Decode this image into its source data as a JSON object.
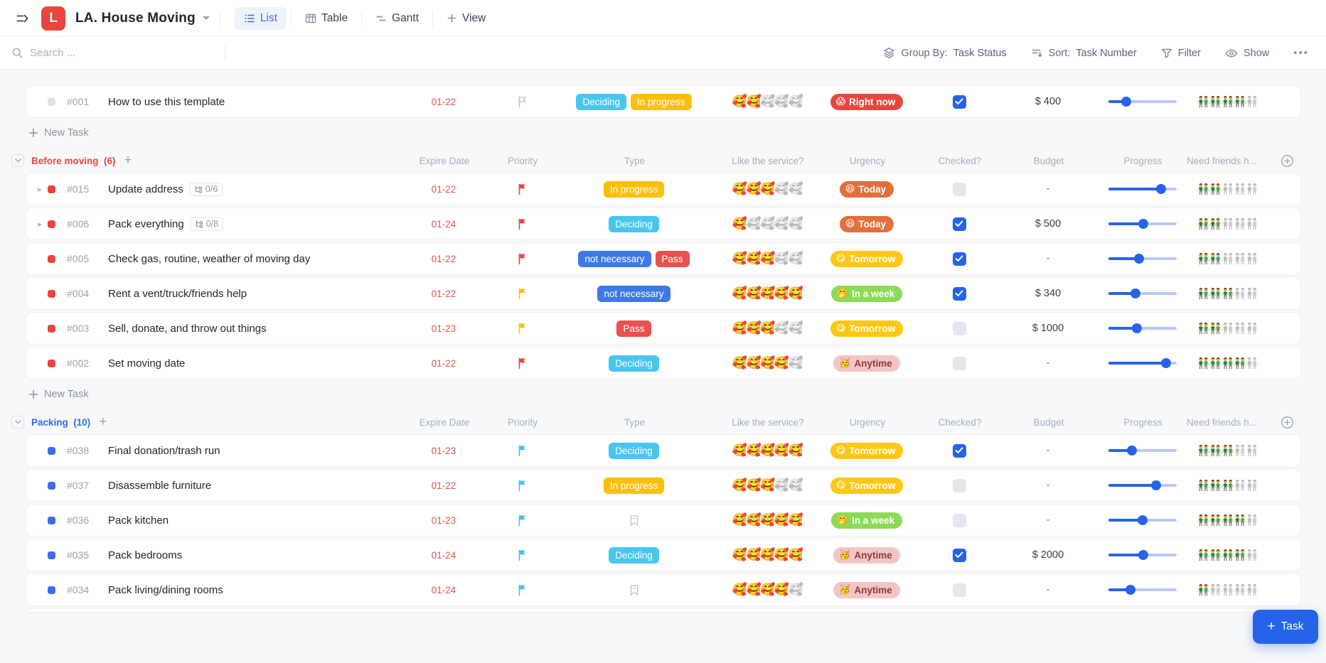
{
  "header": {
    "workspace_initial": "L",
    "title": "LA. House Moving",
    "tabs": [
      {
        "label": "List",
        "active": true
      },
      {
        "label": "Table",
        "active": false
      },
      {
        "label": "Gantt",
        "active": false
      }
    ],
    "view_label": "View"
  },
  "toolbar": {
    "search_placeholder": "Search ...",
    "group_by_label": "Group By:",
    "group_by_value": "Task Status",
    "sort_label": "Sort:",
    "sort_value": "Task Number",
    "filter_label": "Filter",
    "show_label": "Show",
    "more_label": "•••"
  },
  "columns": [
    "Expire Date",
    "Priority",
    "Type",
    "Like the service?",
    "Urgency",
    "Checked?",
    "Budget",
    "Progress",
    "Need friends h..."
  ],
  "labels": {
    "new_task": "New Task",
    "fab": "Task"
  },
  "rating_emoji": "🥰",
  "friends_emoji": "👬",
  "sections": [
    {
      "kind": "plain",
      "new_task": true,
      "tasks": [
        {
          "num": "#001",
          "title": "How to use this template",
          "subtasks": null,
          "status": "#dde1ea",
          "flag": "#b9c0cf",
          "flag_style": "outline",
          "date": "01-22",
          "types": [
            {
              "label": "Deciding",
              "bg": "#49c6ef"
            },
            {
              "label": "In progress",
              "bg": "#fcc00a"
            }
          ],
          "rating": 2,
          "urgency": {
            "label": "Right now",
            "emoji": "😱",
            "bg": "#e8463d",
            "fg": "#ffffff"
          },
          "checked": true,
          "budget": "$ 400",
          "progress": 27,
          "friends": 4
        }
      ]
    },
    {
      "kind": "group",
      "name": "Before moving",
      "count": "(6)",
      "color": "#e8463d",
      "new_task": true,
      "tasks": [
        {
          "num": "#015",
          "title": "Update address",
          "subtasks": "0/6",
          "status": "#e8463d",
          "flag": "#e8463d",
          "flag_style": "filled",
          "date": "01-22",
          "types": [
            {
              "label": "In progress",
              "bg": "#fcc00a"
            }
          ],
          "rating": 3,
          "urgency": {
            "label": "Today",
            "emoji": "😆",
            "bg": "#e2703a",
            "fg": "#ffffff"
          },
          "checked": false,
          "budget": "-",
          "progress": 78,
          "friends": 2
        },
        {
          "num": "#006",
          "title": "Pack everything",
          "subtasks": "0/8",
          "status": "#e8463d",
          "flag": "#e8463d",
          "flag_style": "filled",
          "date": "01-24",
          "types": [
            {
              "label": "Deciding",
              "bg": "#49c6ef"
            }
          ],
          "rating": 1,
          "urgency": {
            "label": "Today",
            "emoji": "😆",
            "bg": "#e2703a",
            "fg": "#ffffff"
          },
          "checked": true,
          "budget": "$ 500",
          "progress": 52,
          "friends": 2
        },
        {
          "num": "#005",
          "title": "Check gas, routine, weather of moving day",
          "subtasks": null,
          "status": "#e8463d",
          "flag": "#e8463d",
          "flag_style": "filled",
          "date": "01-22",
          "types": [
            {
              "label": "not necessary",
              "bg": "#3e79e8"
            },
            {
              "label": "Pass",
              "bg": "#e9504e"
            }
          ],
          "rating": 3,
          "urgency": {
            "label": "Tomorrow",
            "emoji": "😋",
            "bg": "#fdc713",
            "fg": "#ffffff"
          },
          "checked": true,
          "budget": "-",
          "progress": 45,
          "friends": 2
        },
        {
          "num": "#004",
          "title": "Rent a vent/truck/friends help",
          "subtasks": null,
          "status": "#e8463d",
          "flag": "#fcc00a",
          "flag_style": "filled",
          "date": "01-22",
          "types": [
            {
              "label": "not necessary",
              "bg": "#3e79e8"
            }
          ],
          "rating": 5,
          "urgency": {
            "label": "In a week",
            "emoji": "🤭",
            "bg": "#8bdb57",
            "fg": "#ffffff"
          },
          "checked": true,
          "budget": "$ 340",
          "progress": 40,
          "friends": 3
        },
        {
          "num": "#003",
          "title": "Sell, donate, and throw out things",
          "subtasks": null,
          "status": "#e8463d",
          "flag": "#fcc00a",
          "flag_style": "filled",
          "date": "01-23",
          "types": [
            {
              "label": "Pass",
              "bg": "#e9504e"
            }
          ],
          "rating": 3,
          "urgency": {
            "label": "Tomorrow",
            "emoji": "😋",
            "bg": "#fdc713",
            "fg": "#ffffff"
          },
          "checked": false,
          "budget": "$ 1000",
          "progress": 42,
          "friends": 2
        },
        {
          "num": "#002",
          "title": "Set moving date",
          "subtasks": null,
          "status": "#e8463d",
          "flag": "#e8463d",
          "flag_style": "filled",
          "date": "01-22",
          "types": [
            {
              "label": "Deciding",
              "bg": "#49c6ef"
            }
          ],
          "rating": 4,
          "urgency": {
            "label": "Anytime",
            "emoji": "🥳",
            "bg": "#f4c5c5",
            "fg": "#8d3a3a"
          },
          "checked": false,
          "budget": "-",
          "progress": 85,
          "friends": 4
        }
      ]
    },
    {
      "kind": "group",
      "name": "Packing",
      "count": "(10)",
      "color": "#2f6be4",
      "new_task": false,
      "partial_next_row": true,
      "tasks": [
        {
          "num": "#038",
          "title": "Final donation/trash run",
          "subtasks": null,
          "status": "#3e6be8",
          "flag": "#45c0f0",
          "flag_style": "filled",
          "date": "01-23",
          "types": [
            {
              "label": "Deciding",
              "bg": "#49c6ef"
            }
          ],
          "rating": 5,
          "urgency": {
            "label": "Tomorrow",
            "emoji": "😋",
            "bg": "#fdc713",
            "fg": "#ffffff"
          },
          "checked": true,
          "budget": "-",
          "progress": 35,
          "friends": 3
        },
        {
          "num": "#037",
          "title": "Disassemble furniture",
          "subtasks": null,
          "status": "#3e6be8",
          "flag": "#45c0f0",
          "flag_style": "filled",
          "date": "01-22",
          "types": [
            {
              "label": "In progress",
              "bg": "#fcc00a"
            }
          ],
          "rating": 3,
          "urgency": {
            "label": "Tomorrow",
            "emoji": "😋",
            "bg": "#fdc713",
            "fg": "#ffffff"
          },
          "checked": false,
          "budget": "-",
          "progress": 70,
          "friends": 3
        },
        {
          "num": "#036",
          "title": "Pack kitchen",
          "subtasks": null,
          "status": "#3e6be8",
          "flag": "#45c0f0",
          "flag_style": "filled",
          "date": "01-23",
          "types": [],
          "rating": 5,
          "urgency": {
            "label": "In a week",
            "emoji": "🤭",
            "bg": "#8bdb57",
            "fg": "#ffffff"
          },
          "checked": false,
          "budget": "-",
          "progress": 50,
          "friends": 4
        },
        {
          "num": "#035",
          "title": "Pack bedrooms",
          "subtasks": null,
          "status": "#3e6be8",
          "flag": "#45c0f0",
          "flag_style": "filled",
          "date": "01-24",
          "types": [
            {
              "label": "Deciding",
              "bg": "#49c6ef"
            }
          ],
          "rating": 5,
          "urgency": {
            "label": "Anytime",
            "emoji": "🥳",
            "bg": "#f4c5c5",
            "fg": "#8d3a3a"
          },
          "checked": true,
          "budget": "$ 2000",
          "progress": 52,
          "friends": 4
        },
        {
          "num": "#034",
          "title": "Pack living/dining rooms",
          "subtasks": null,
          "status": "#3e6be8",
          "flag": "#45c0f0",
          "flag_style": "filled",
          "date": "01-24",
          "types": [],
          "rating": 4,
          "urgency": {
            "label": "Anytime",
            "emoji": "🥳",
            "bg": "#f4c5c5",
            "fg": "#8d3a3a"
          },
          "checked": false,
          "budget": "-",
          "progress": 33,
          "friends": 1
        }
      ]
    }
  ]
}
